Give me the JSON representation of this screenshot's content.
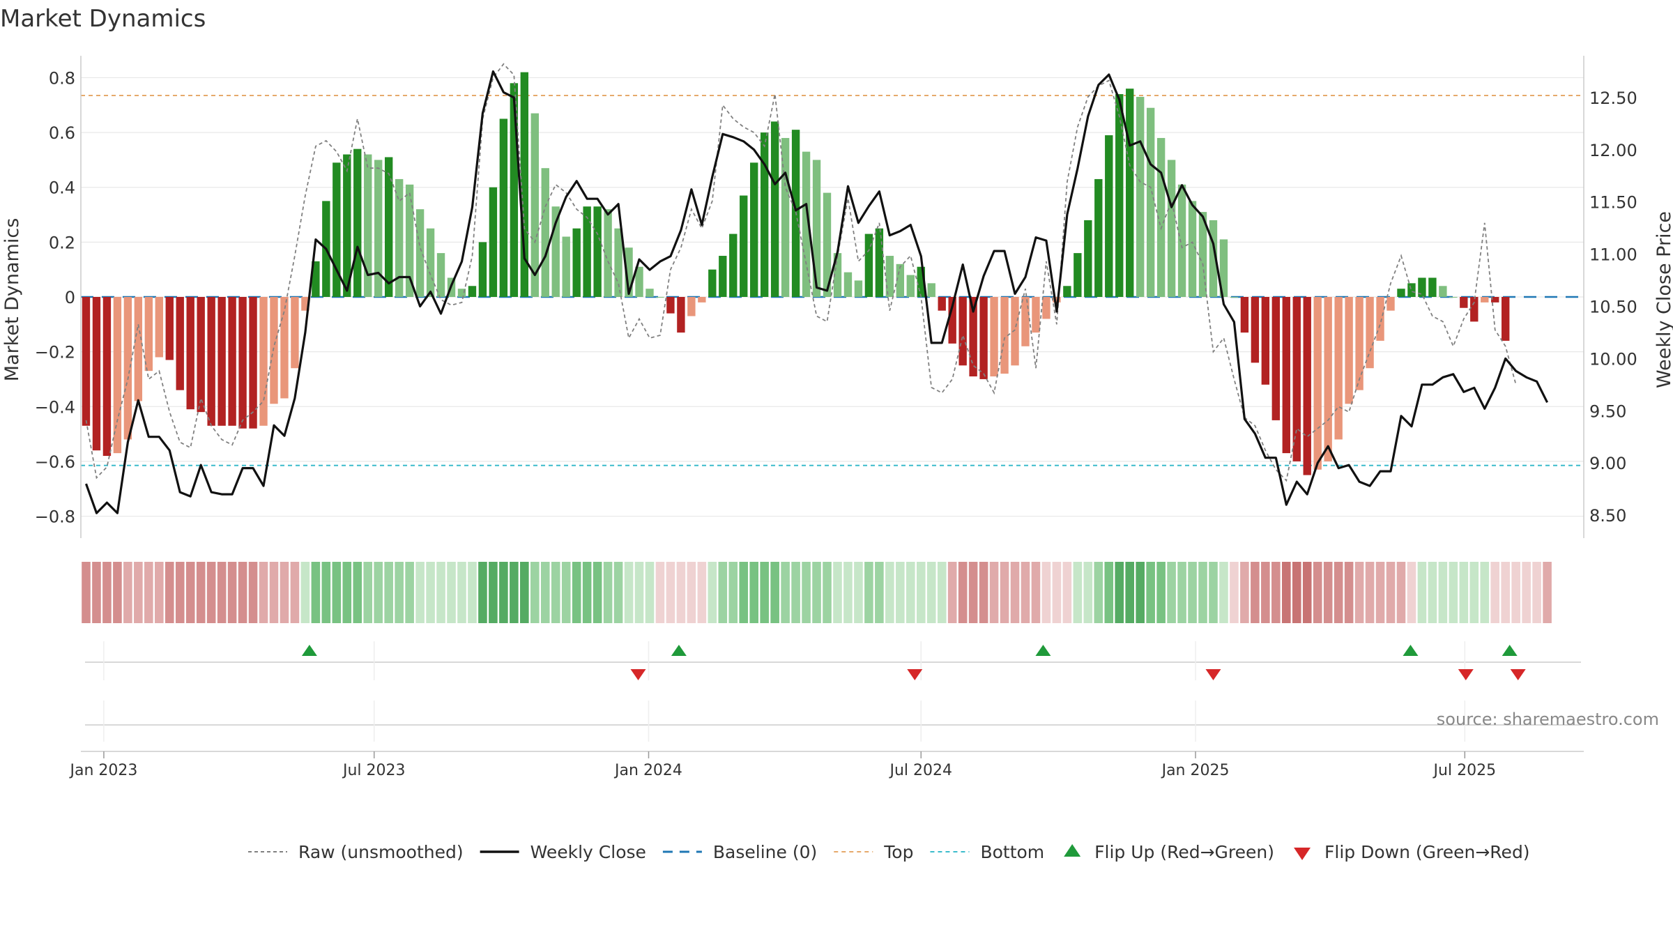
{
  "chart_data": {
    "type": "bar",
    "title": "Market Dynamics",
    "ylabel_left": "Market Dynamics",
    "ylabel_right": "Weekly Close Price",
    "source": "source: sharemaestro.com",
    "ylim_left": [
      -0.88,
      0.88
    ],
    "ylim_right": [
      8.28,
      12.9
    ],
    "yticks_left": [
      -0.8,
      -0.6,
      -0.4,
      -0.2,
      0,
      0.2,
      0.4,
      0.6,
      0.8
    ],
    "ytick_labels_left": [
      "−0.8",
      "−0.6",
      "−0.4",
      "−0.2",
      "0",
      "0.2",
      "0.4",
      "0.6",
      "0.8"
    ],
    "yticks_right": [
      8.5,
      9.0,
      9.5,
      10.0,
      10.5,
      11.0,
      11.5,
      12.0,
      12.5
    ],
    "ytick_labels_right": [
      "8.50",
      "9.00",
      "9.50",
      "10.00",
      "10.50",
      "11.00",
      "11.50",
      "12.00",
      "12.50"
    ],
    "x_start": "2023-01-02",
    "n_weeks": 144,
    "xticks": [
      {
        "label": "Jan 2023",
        "week": 1.7
      },
      {
        "label": "Jul 2023",
        "week": 27.6
      },
      {
        "label": "Jan 2024",
        "week": 53.9
      },
      {
        "label": "Jul 2024",
        "week": 80.0
      },
      {
        "label": "Jan 2025",
        "week": 106.3
      },
      {
        "label": "Jul 2025",
        "week": 132.1
      }
    ],
    "top_level": 0.735,
    "bottom_level": -0.615,
    "baseline": 0,
    "grid": true,
    "legend_position": "bottom-center",
    "legend": [
      {
        "key": "raw",
        "label": "Raw (unsmoothed)"
      },
      {
        "key": "close",
        "label": "Weekly Close"
      },
      {
        "key": "baseline",
        "label": "Baseline (0)"
      },
      {
        "key": "top",
        "label": "Top"
      },
      {
        "key": "bottom",
        "label": "Bottom"
      },
      {
        "key": "flip_up",
        "label": "Flip Up (Red→Green)"
      },
      {
        "key": "flip_down",
        "label": "Flip Down (Green→Red)"
      }
    ],
    "colors": {
      "dark_red": "#b22222",
      "light_red": "#e9967a",
      "dark_green": "#228b22",
      "light_green": "#7fbf7f",
      "close": "#111111",
      "raw": "#808080",
      "baseline": "#1f77b4",
      "top": "#e6a96b",
      "bottom": "#3bbccc",
      "flip_up": "#1f9a3a",
      "flip_down": "#d62728"
    },
    "dynamics": [
      -0.47,
      -0.56,
      -0.58,
      -0.57,
      -0.52,
      -0.38,
      -0.27,
      -0.22,
      -0.23,
      -0.34,
      -0.41,
      -0.42,
      -0.47,
      -0.47,
      -0.47,
      -0.48,
      -0.48,
      -0.47,
      -0.39,
      -0.37,
      -0.26,
      -0.05,
      0.13,
      0.35,
      0.49,
      0.52,
      0.54,
      0.52,
      0.5,
      0.51,
      0.43,
      0.41,
      0.32,
      0.25,
      0.16,
      0.07,
      0.03,
      0.04,
      0.2,
      0.4,
      0.65,
      0.78,
      0.82,
      0.67,
      0.47,
      0.33,
      0.22,
      0.25,
      0.33,
      0.33,
      0.32,
      0.25,
      0.18,
      0.11,
      0.03,
      0.0,
      -0.06,
      -0.13,
      -0.07,
      -0.02,
      0.1,
      0.15,
      0.23,
      0.37,
      0.49,
      0.6,
      0.64,
      0.58,
      0.61,
      0.53,
      0.5,
      0.38,
      0.16,
      0.09,
      0.06,
      0.23,
      0.25,
      0.15,
      0.12,
      0.08,
      0.11,
      0.05,
      -0.05,
      -0.17,
      -0.25,
      -0.29,
      -0.3,
      -0.29,
      -0.28,
      -0.25,
      -0.18,
      -0.13,
      -0.08,
      -0.02,
      0.04,
      0.16,
      0.28,
      0.43,
      0.59,
      0.74,
      0.76,
      0.73,
      0.69,
      0.58,
      0.5,
      0.41,
      0.35,
      0.31,
      0.28,
      0.21,
      0.0,
      -0.13,
      -0.24,
      -0.32,
      -0.45,
      -0.57,
      -0.6,
      -0.65,
      -0.63,
      -0.6,
      -0.52,
      -0.39,
      -0.34,
      -0.26,
      -0.16,
      -0.05,
      0.03,
      0.05,
      0.07,
      0.07,
      0.04,
      0.0,
      -0.04,
      -0.09,
      -0.02,
      -0.02,
      -0.16
    ],
    "close": [
      8.8,
      8.52,
      8.62,
      8.52,
      9.2,
      9.6,
      9.25,
      9.25,
      9.12,
      8.72,
      8.68,
      8.98,
      8.72,
      8.7,
      8.7,
      8.95,
      8.95,
      8.78,
      9.36,
      9.26,
      9.62,
      10.25,
      11.14,
      11.05,
      10.85,
      10.65,
      11.07,
      10.8,
      10.82,
      10.72,
      10.78,
      10.78,
      10.5,
      10.64,
      10.43,
      10.7,
      10.93,
      11.45,
      12.35,
      12.75,
      12.55,
      12.5,
      10.96,
      10.8,
      10.98,
      11.3,
      11.55,
      11.7,
      11.53,
      11.53,
      11.38,
      11.48,
      10.62,
      10.95,
      10.85,
      10.93,
      10.98,
      11.23,
      11.62,
      11.28,
      11.74,
      12.15,
      12.12,
      12.08,
      12.0,
      11.86,
      11.67,
      11.78,
      11.42,
      11.48,
      10.68,
      10.65,
      11.02,
      11.65,
      11.3,
      11.46,
      11.6,
      11.18,
      11.22,
      11.28,
      10.98,
      10.15,
      10.15,
      10.5,
      10.9,
      10.45,
      10.79,
      11.03,
      11.03,
      10.62,
      10.78,
      11.16,
      11.13,
      10.45,
      11.38,
      11.82,
      12.32,
      12.62,
      12.72,
      12.48,
      12.04,
      12.08,
      11.86,
      11.78,
      11.45,
      11.66,
      11.47,
      11.36,
      11.1,
      10.52,
      10.35,
      9.42,
      9.28,
      9.05,
      9.05,
      8.6,
      8.82,
      8.7,
      9.0,
      9.16,
      8.95,
      8.98,
      8.82,
      8.78,
      8.92,
      8.92,
      9.45,
      9.35,
      9.75,
      9.75,
      9.82,
      9.85,
      9.68,
      9.72,
      9.52,
      9.72,
      10.0,
      9.88,
      9.82,
      9.78,
      9.58
    ],
    "raw": [
      -0.45,
      -0.66,
      -0.62,
      -0.45,
      -0.3,
      -0.1,
      -0.3,
      -0.27,
      -0.42,
      -0.53,
      -0.55,
      -0.37,
      -0.47,
      -0.52,
      -0.54,
      -0.45,
      -0.42,
      -0.38,
      -0.18,
      -0.05,
      0.15,
      0.37,
      0.55,
      0.57,
      0.53,
      0.46,
      0.65,
      0.47,
      0.47,
      0.45,
      0.35,
      0.38,
      0.18,
      0.08,
      -0.01,
      -0.03,
      -0.02,
      0.15,
      0.65,
      0.8,
      0.85,
      0.81,
      0.25,
      0.2,
      0.33,
      0.41,
      0.38,
      0.32,
      0.29,
      0.23,
      0.13,
      0.05,
      -0.15,
      -0.08,
      -0.15,
      -0.14,
      0.1,
      0.18,
      0.32,
      0.25,
      0.35,
      0.7,
      0.65,
      0.62,
      0.6,
      0.55,
      0.74,
      0.4,
      0.31,
      0.12,
      -0.07,
      -0.09,
      0.15,
      0.36,
      0.13,
      0.17,
      0.27,
      -0.05,
      0.11,
      0.15,
      0.0,
      -0.33,
      -0.35,
      -0.3,
      -0.14,
      -0.25,
      -0.28,
      -0.35,
      -0.15,
      -0.12,
      0.03,
      -0.26,
      0.13,
      -0.1,
      0.42,
      0.62,
      0.73,
      0.77,
      0.79,
      0.66,
      0.48,
      0.42,
      0.4,
      0.25,
      0.35,
      0.18,
      0.2,
      0.12,
      -0.2,
      -0.15,
      -0.3,
      -0.44,
      -0.47,
      -0.56,
      -0.63,
      -0.67,
      -0.48,
      -0.51,
      -0.48,
      -0.45,
      -0.4,
      -0.42,
      -0.3,
      -0.2,
      -0.1,
      0.05,
      0.15,
      0.02,
      0.01,
      -0.07,
      -0.09,
      -0.18,
      -0.08,
      -0.02,
      0.27,
      -0.12,
      -0.18,
      -0.32
    ],
    "state_strip": [
      -3,
      -3,
      -3,
      -3,
      -2,
      -2,
      -2,
      -2,
      -3,
      -3,
      -3,
      -3,
      -3,
      -3,
      -3,
      -3,
      -3,
      -2,
      -2,
      -2,
      -2,
      1,
      3,
      3,
      3,
      3,
      3,
      2,
      2,
      2,
      2,
      2,
      1,
      1,
      1,
      1,
      1,
      1,
      4,
      4,
      4,
      4,
      4,
      2,
      2,
      2,
      2,
      3,
      3,
      3,
      2,
      2,
      1,
      1,
      1,
      -1,
      -1,
      -1,
      -1,
      -1,
      1,
      2,
      2,
      3,
      3,
      3,
      3,
      2,
      2,
      2,
      2,
      2,
      1,
      1,
      1,
      2,
      2,
      1,
      1,
      1,
      1,
      1,
      1,
      -2,
      -3,
      -3,
      -3,
      -2,
      -2,
      -2,
      -2,
      -2,
      -1,
      -1,
      -1,
      1,
      1,
      2,
      3,
      4,
      4,
      4,
      3,
      3,
      2,
      2,
      2,
      2,
      2,
      1,
      -1,
      -2,
      -3,
      -3,
      -3,
      -4,
      -4,
      -4,
      -3,
      -3,
      -3,
      -3,
      -2,
      -2,
      -2,
      -2,
      -2,
      -1,
      1,
      1,
      1,
      1,
      1,
      1,
      1,
      -1,
      -1,
      -1,
      -1,
      -1,
      -2
    ],
    "flip_up_weeks": [
      21.4,
      56.8,
      91.7,
      126.9,
      136.4
    ],
    "flip_down_weeks": [
      52.9,
      79.4,
      108.0,
      132.2,
      137.2
    ]
  }
}
